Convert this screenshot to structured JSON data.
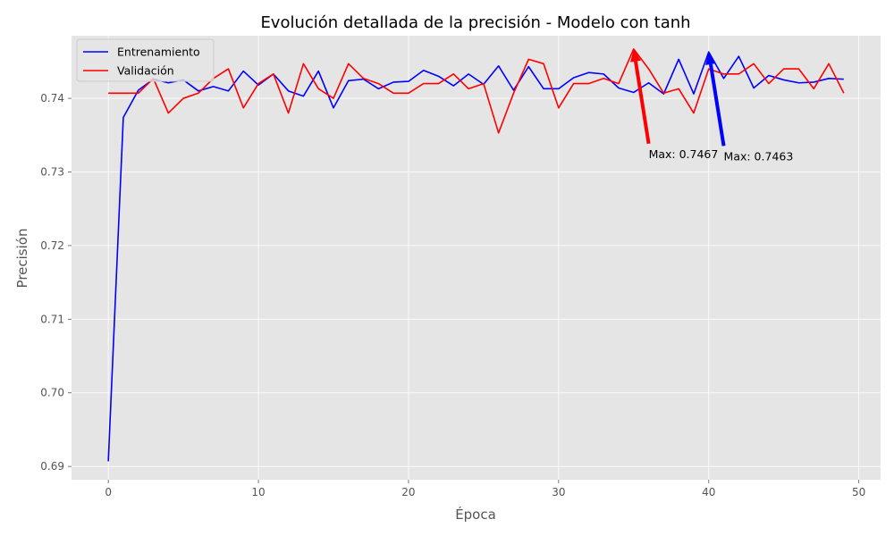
{
  "chart_data": {
    "type": "line",
    "title": "Evolución detallada de la precisión - Modelo con tanh",
    "xlabel": "Época",
    "ylabel": "Precisión",
    "xlim": [
      -2.45,
      51.45
    ],
    "ylim": [
      0.6882,
      0.7485
    ],
    "xticks": [
      0,
      10,
      20,
      30,
      40,
      50
    ],
    "yticks": [
      0.69,
      0.7,
      0.71,
      0.72,
      0.73,
      0.74
    ],
    "ytick_labels": [
      "0.69",
      "0.70",
      "0.71",
      "0.72",
      "0.73",
      "0.74"
    ],
    "grid": true,
    "legend_position": "top-left",
    "x": [
      0,
      1,
      2,
      3,
      4,
      5,
      6,
      7,
      8,
      9,
      10,
      11,
      12,
      13,
      14,
      15,
      16,
      17,
      18,
      19,
      20,
      21,
      22,
      23,
      24,
      25,
      26,
      27,
      28,
      29,
      30,
      31,
      32,
      33,
      34,
      35,
      36,
      37,
      38,
      39,
      40,
      41,
      42,
      43,
      44,
      45,
      46,
      47,
      48,
      49
    ],
    "series": [
      {
        "name": "Entrenamiento",
        "color": "#0000ff",
        "values": [
          0.6907,
          0.7374,
          0.7411,
          0.7426,
          0.7421,
          0.7425,
          0.741,
          0.7416,
          0.741,
          0.7437,
          0.7418,
          0.7433,
          0.741,
          0.7403,
          0.7437,
          0.7387,
          0.7424,
          0.7426,
          0.7413,
          0.7422,
          0.7423,
          0.7438,
          0.743,
          0.7417,
          0.7433,
          0.7419,
          0.7444,
          0.7411,
          0.7443,
          0.7413,
          0.7413,
          0.7428,
          0.7435,
          0.7433,
          0.7414,
          0.7408,
          0.7421,
          0.7406,
          0.7453,
          0.7406,
          0.7463,
          0.7427,
          0.7457,
          0.7414,
          0.7431,
          0.7425,
          0.7421,
          0.7422,
          0.7427,
          0.7426
        ]
      },
      {
        "name": "Validación",
        "color": "#ff0000",
        "values": [
          0.7407,
          0.7407,
          0.7407,
          0.7427,
          0.738,
          0.74,
          0.7407,
          0.7427,
          0.744,
          0.7387,
          0.742,
          0.7433,
          0.738,
          0.7447,
          0.7413,
          0.74,
          0.7447,
          0.7427,
          0.742,
          0.7407,
          0.7407,
          0.742,
          0.742,
          0.7433,
          0.7413,
          0.742,
          0.7353,
          0.7407,
          0.7453,
          0.7447,
          0.7387,
          0.742,
          0.742,
          0.7427,
          0.742,
          0.7467,
          0.744,
          0.7407,
          0.7413,
          0.738,
          0.744,
          0.7433,
          0.7433,
          0.7447,
          0.742,
          0.744,
          0.744,
          0.7413,
          0.7447,
          0.7407
        ]
      }
    ],
    "annotations": [
      {
        "text": "Max: 0.7467",
        "color": "#ff0000",
        "point": [
          35,
          0.7467
        ],
        "text_pos": [
          36,
          0.7319
        ]
      },
      {
        "text": "Max: 0.7463",
        "color": "#0000ff",
        "point": [
          40,
          0.7463
        ],
        "text_pos": [
          41,
          0.7316
        ]
      }
    ]
  },
  "colors": {
    "plot_background": "#e5e5e5",
    "grid": "#ffffff",
    "frame": "#ffffff"
  }
}
